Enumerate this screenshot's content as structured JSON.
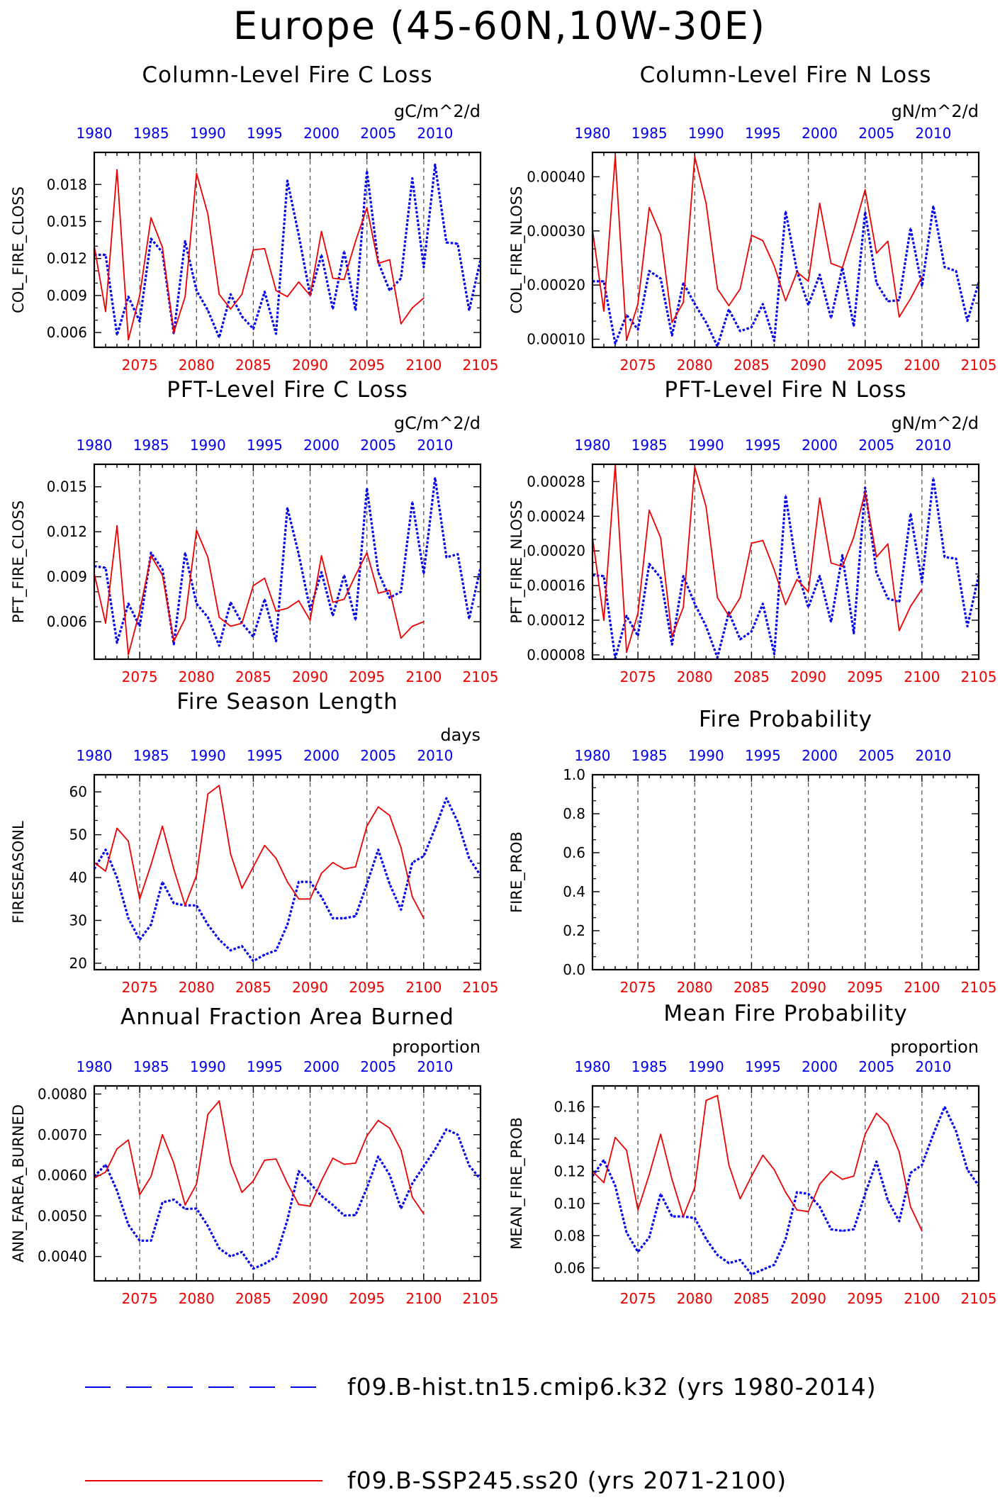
{
  "figure_title": "Europe (45-60N,10W-30E)",
  "colors": {
    "hist": "#0000ee",
    "ssp": "#ee0000",
    "axis": "#000000"
  },
  "top_axis_labels": [
    "1980",
    "1985",
    "1990",
    "1995",
    "2000",
    "2005",
    "2010"
  ],
  "bottom_axis_labels": [
    "2075",
    "2080",
    "2085",
    "2090",
    "2095",
    "2100",
    "2105"
  ],
  "legend": [
    {
      "label": "f09.B-hist.tn15.cmip6.k32 (yrs 1980-2014)",
      "color": "#0000ee",
      "style": "dashed"
    },
    {
      "label": "f09.B-SSP245.ss20 (yrs 2071-2100)",
      "color": "#ee0000",
      "style": "solid"
    }
  ],
  "chart_data": [
    {
      "type": "line",
      "title": "Column-Level Fire C Loss",
      "units": "gC/m^2/d",
      "ylabel": "COL_FIRE_CLOSS",
      "xlim": [
        2071,
        2105
      ],
      "ylim": [
        0.0048,
        0.0206
      ],
      "yticks": [
        "0.006",
        "0.009",
        "0.012",
        "0.015",
        "0.018"
      ],
      "ytick_values": [
        0.006,
        0.009,
        0.012,
        0.015,
        0.018
      ],
      "series": [
        {
          "name": "f09.B-hist.tn15.cmip6.k32 (yrs 1980-2014)",
          "style": "dashed",
          "x_start": 2071,
          "values": [
            0.0123,
            0.0123,
            0.0058,
            0.0089,
            0.0069,
            0.0136,
            0.0125,
            0.0059,
            0.0134,
            0.0094,
            0.0078,
            0.0056,
            0.0091,
            0.0073,
            0.0063,
            0.0093,
            0.0059,
            0.0183,
            0.0139,
            0.009,
            0.0123,
            0.0079,
            0.0126,
            0.0078,
            0.0191,
            0.0117,
            0.0094,
            0.0104,
            0.0185,
            0.0113,
            0.0196,
            0.0133,
            0.0132,
            0.0078,
            0.0119
          ]
        },
        {
          "name": "f09.B-SSP245.ss20 (yrs 2071-2100)",
          "style": "solid",
          "x_start": 2071,
          "values": [
            0.013,
            0.0077,
            0.0192,
            0.0054,
            0.009,
            0.0153,
            0.0129,
            0.006,
            0.0089,
            0.0189,
            0.0156,
            0.0091,
            0.0079,
            0.0091,
            0.0127,
            0.0128,
            0.0094,
            0.0089,
            0.0101,
            0.009,
            0.0142,
            0.0104,
            0.0103,
            0.0134,
            0.0161,
            0.0116,
            0.0119,
            0.0067,
            0.008,
            0.0088
          ]
        }
      ]
    },
    {
      "type": "line",
      "title": "Column-Level Fire N Loss",
      "units": "gN/m^2/d",
      "ylabel": "COL_FIRE_NLOSS",
      "xlim": [
        2071,
        2105
      ],
      "ylim": [
        8.5e-05,
        0.000445
      ],
      "yticks": [
        "0.00010",
        "0.00020",
        "0.00030",
        "0.00040"
      ],
      "ytick_values": [
        0.0001,
        0.0002,
        0.0003,
        0.0004
      ],
      "series": [
        {
          "name": "f09.B-hist.tn15.cmip6.k32 (yrs 1980-2014)",
          "style": "dashed",
          "x_start": 2071,
          "values": [
            0.000207,
            0.000207,
            9.2e-05,
            0.000145,
            0.000118,
            0.000226,
            0.000212,
            0.000107,
            0.000204,
            0.000165,
            0.000131,
            8.7e-05,
            0.000155,
            0.000115,
            0.000122,
            0.000165,
            9.7e-05,
            0.000336,
            0.000226,
            0.000163,
            0.000219,
            0.000139,
            0.000232,
            0.000124,
            0.000335,
            0.000204,
            0.00017,
            0.000172,
            0.000305,
            0.000198,
            0.000346,
            0.000233,
            0.000226,
            0.000134,
            0.000205
          ]
        },
        {
          "name": "f09.B-SSP245.ss20 (yrs 2071-2100)",
          "style": "solid",
          "x_start": 2071,
          "values": [
            0.000302,
            0.000152,
            0.000438,
            9.8e-05,
            0.000165,
            0.000343,
            0.000293,
            0.000131,
            0.000168,
            0.000437,
            0.000351,
            0.000193,
            0.000162,
            0.000193,
            0.000292,
            0.000282,
            0.000235,
            0.000171,
            0.000224,
            0.000207,
            0.000351,
            0.00024,
            0.000232,
            0.000301,
            0.000376,
            0.000259,
            0.000281,
            0.000141,
            0.000175,
            0.000215
          ]
        }
      ]
    },
    {
      "type": "line",
      "title": "PFT-Level Fire C Loss",
      "units": "gC/m^2/d",
      "ylabel": "PFT_FIRE_CLOSS",
      "xlim": [
        2071,
        2105
      ],
      "ylim": [
        0.0035,
        0.0165
      ],
      "yticks": [
        "0.006",
        "0.009",
        "0.012",
        "0.015"
      ],
      "ytick_values": [
        0.006,
        0.009,
        0.012,
        0.015
      ],
      "series": [
        {
          "name": "f09.B-hist.tn15.cmip6.k32 (yrs 1980-2014)",
          "style": "dashed",
          "x_start": 2071,
          "values": [
            0.0097,
            0.0096,
            0.0046,
            0.0072,
            0.0057,
            0.0106,
            0.0095,
            0.0045,
            0.0106,
            0.0072,
            0.0063,
            0.0044,
            0.0073,
            0.0059,
            0.005,
            0.0075,
            0.0047,
            0.0136,
            0.0105,
            0.0068,
            0.0093,
            0.0064,
            0.0091,
            0.0061,
            0.0149,
            0.0093,
            0.0076,
            0.008,
            0.014,
            0.0092,
            0.0156,
            0.0103,
            0.0105,
            0.0062,
            0.0096
          ]
        },
        {
          "name": "f09.B-SSP245.ss20 (yrs 2071-2100)",
          "style": "solid",
          "x_start": 2071,
          "values": [
            0.0092,
            0.0059,
            0.0124,
            0.0038,
            0.0067,
            0.0104,
            0.0091,
            0.0047,
            0.0062,
            0.0121,
            0.0103,
            0.0063,
            0.0057,
            0.0059,
            0.0084,
            0.0089,
            0.0067,
            0.0069,
            0.0074,
            0.0061,
            0.0104,
            0.0073,
            0.0075,
            0.0091,
            0.0106,
            0.0079,
            0.0081,
            0.0049,
            0.0057,
            0.006
          ]
        }
      ]
    },
    {
      "type": "line",
      "title": "PFT-Level Fire N Loss",
      "units": "gN/m^2/d",
      "ylabel": "PFT_FIRE_NLOSS",
      "xlim": [
        2071,
        2105
      ],
      "ylim": [
        7.5e-05,
        0.0003
      ],
      "yticks": [
        "0.00008",
        "0.00012",
        "0.00016",
        "0.00020",
        "0.00024",
        "0.00028"
      ],
      "ytick_values": [
        8e-05,
        0.00012,
        0.00016,
        0.0002,
        0.00024,
        0.00028
      ],
      "series": [
        {
          "name": "f09.B-hist.tn15.cmip6.k32 (yrs 1980-2014)",
          "style": "dashed",
          "x_start": 2071,
          "values": [
            0.000172,
            0.000171,
            7.6e-05,
            0.000125,
            0.000102,
            0.000185,
            0.000169,
            9.2e-05,
            0.000171,
            0.000139,
            0.000113,
            7.7e-05,
            0.000129,
            9.8e-05,
            0.000107,
            0.000139,
            8.1e-05,
            0.000264,
            0.000178,
            0.000135,
            0.000171,
            0.000118,
            0.000195,
            0.000105,
            0.000273,
            0.000175,
            0.000145,
            0.000141,
            0.000243,
            0.000164,
            0.000284,
            0.000193,
            0.000191,
            0.000113,
            0.000172
          ]
        },
        {
          "name": "f09.B-SSP245.ss20 (yrs 2071-2100)",
          "style": "solid",
          "x_start": 2071,
          "values": [
            0.000216,
            0.00012,
            0.000299,
            8.3e-05,
            0.000128,
            0.000247,
            0.000215,
            0.000101,
            0.000135,
            0.000297,
            0.000251,
            0.000146,
            0.000125,
            0.000146,
            0.000209,
            0.000212,
            0.000178,
            0.000138,
            0.000167,
            0.000153,
            0.000261,
            0.000186,
            0.000182,
            0.000216,
            0.000268,
            0.000193,
            0.000208,
            0.000108,
            0.000136,
            0.000156
          ]
        }
      ]
    },
    {
      "type": "line",
      "title": "Fire Season Length",
      "units": "days",
      "ylabel": "FIRESEASONL",
      "xlim": [
        2071,
        2105
      ],
      "ylim": [
        18.5,
        64
      ],
      "yticks": [
        "20",
        "30",
        "40",
        "50",
        "60"
      ],
      "ytick_values": [
        20,
        30,
        40,
        50,
        60
      ],
      "series": [
        {
          "name": "f09.B-hist.tn15.cmip6.k32 (yrs 1980-2014)",
          "style": "dashed",
          "x_start": 2071,
          "values": [
            42.0,
            46.5,
            40.0,
            30.5,
            25.5,
            29.0,
            39.0,
            34.0,
            33.5,
            33.5,
            29.0,
            25.5,
            23.0,
            24.0,
            20.5,
            22.0,
            23.0,
            29.0,
            39.0,
            39.0,
            35.5,
            30.5,
            30.5,
            31.0,
            38.5,
            46.5,
            38.5,
            32.5,
            43.5,
            45.0,
            51.5,
            58.5,
            53.0,
            44.5,
            40.5
          ]
        },
        {
          "name": "f09.B-SSP245.ss20 (yrs 2071-2100)",
          "style": "solid",
          "x_start": 2071,
          "values": [
            43.5,
            41.5,
            51.5,
            48.5,
            35.0,
            43.0,
            52.0,
            42.0,
            33.5,
            40.5,
            59.5,
            61.5,
            45.5,
            37.5,
            42.5,
            47.5,
            44.5,
            39.0,
            35.0,
            35.0,
            41.0,
            43.5,
            42.0,
            42.5,
            52.0,
            56.5,
            54.5,
            47.0,
            35.5,
            30.5
          ]
        }
      ]
    },
    {
      "type": "line",
      "title": "Fire Probability",
      "units": "",
      "ylabel": "FIRE_PROB",
      "xlim": [
        2071,
        2105
      ],
      "ylim": [
        0,
        1
      ],
      "yticks": [
        "0.0",
        "0.2",
        "0.4",
        "0.6",
        "0.8",
        "1.0"
      ],
      "ytick_values": [
        0,
        0.2,
        0.4,
        0.6,
        0.8,
        1.0
      ],
      "series": []
    },
    {
      "type": "line",
      "title": "Annual Fraction Area Burned",
      "units": "proportion",
      "ylabel": "ANN_FAREA_BURNED",
      "xlim": [
        2071,
        2105
      ],
      "ylim": [
        0.0034,
        0.0082
      ],
      "yticks": [
        "0.0040",
        "0.0050",
        "0.0060",
        "0.0070",
        "0.0080"
      ],
      "ytick_values": [
        0.004,
        0.005,
        0.006,
        0.007,
        0.008
      ],
      "series": [
        {
          "name": "f09.B-hist.tn15.cmip6.k32 (yrs 1980-2014)",
          "style": "dashed",
          "x_start": 2071,
          "values": [
            0.00597,
            0.00626,
            0.00562,
            0.00478,
            0.00439,
            0.00439,
            0.00533,
            0.0054,
            0.00517,
            0.00518,
            0.00475,
            0.0042,
            0.004,
            0.00411,
            0.0037,
            0.00382,
            0.00399,
            0.0049,
            0.0061,
            0.0058,
            0.00549,
            0.00527,
            0.00501,
            0.00502,
            0.00569,
            0.00646,
            0.00601,
            0.00518,
            0.0058,
            0.00622,
            0.00664,
            0.00713,
            0.007,
            0.00624,
            0.0059
          ]
        },
        {
          "name": "f09.B-SSP245.ss20 (yrs 2071-2100)",
          "style": "solid",
          "x_start": 2071,
          "values": [
            0.00593,
            0.00608,
            0.00665,
            0.00687,
            0.00552,
            0.00597,
            0.007,
            0.0063,
            0.00527,
            0.00578,
            0.0075,
            0.00783,
            0.00629,
            0.00558,
            0.00586,
            0.00637,
            0.0064,
            0.0058,
            0.00528,
            0.00524,
            0.00587,
            0.00642,
            0.00627,
            0.0063,
            0.00697,
            0.00735,
            0.00716,
            0.00662,
            0.00546,
            0.00505
          ]
        }
      ]
    },
    {
      "type": "line",
      "title": "Mean Fire Probability",
      "units": "proportion",
      "ylabel": "MEAN_FIRE_PROB",
      "xlim": [
        2071,
        2105
      ],
      "ylim": [
        0.052,
        0.173
      ],
      "yticks": [
        "0.06",
        "0.08",
        "0.10",
        "0.12",
        "0.14",
        "0.16"
      ],
      "ytick_values": [
        0.06,
        0.08,
        0.1,
        0.12,
        0.14,
        0.16
      ],
      "series": [
        {
          "name": "f09.B-hist.tn15.cmip6.k32 (yrs 1980-2014)",
          "style": "dashed",
          "x_start": 2071,
          "values": [
            0.117,
            0.127,
            0.111,
            0.082,
            0.07,
            0.079,
            0.106,
            0.092,
            0.092,
            0.091,
            0.078,
            0.068,
            0.063,
            0.065,
            0.056,
            0.059,
            0.062,
            0.078,
            0.107,
            0.106,
            0.098,
            0.084,
            0.083,
            0.084,
            0.106,
            0.126,
            0.102,
            0.089,
            0.119,
            0.124,
            0.143,
            0.16,
            0.145,
            0.121,
            0.111
          ]
        },
        {
          "name": "f09.B-SSP245.ss20 (yrs 2071-2100)",
          "style": "solid",
          "x_start": 2071,
          "values": [
            0.12,
            0.113,
            0.141,
            0.133,
            0.096,
            0.118,
            0.143,
            0.115,
            0.092,
            0.11,
            0.164,
            0.167,
            0.124,
            0.103,
            0.117,
            0.13,
            0.121,
            0.107,
            0.096,
            0.095,
            0.112,
            0.12,
            0.115,
            0.117,
            0.143,
            0.156,
            0.149,
            0.132,
            0.098,
            0.083
          ]
        }
      ]
    }
  ]
}
